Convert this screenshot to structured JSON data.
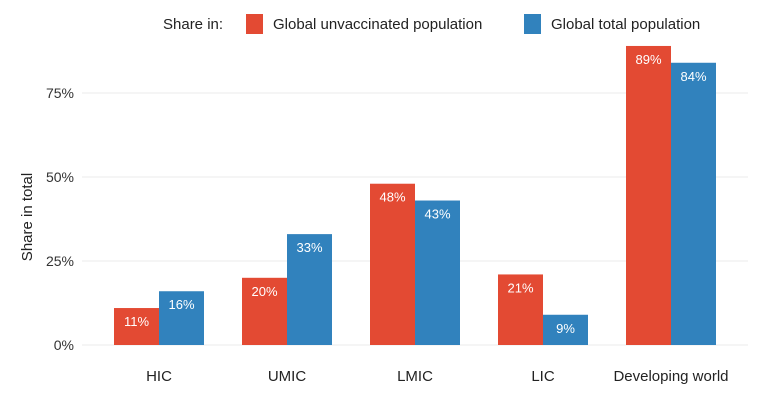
{
  "chart_data": {
    "type": "bar",
    "title": "",
    "xlabel": "",
    "ylabel": "Share in total",
    "ylim": [
      0,
      0.9
    ],
    "yticks": [
      0,
      0.25,
      0.5,
      0.75
    ],
    "ytick_labels": [
      "0%",
      "25%",
      "50%",
      "75%"
    ],
    "grid": true,
    "legend": {
      "title": "Share in:",
      "placement": "top-right",
      "entries": [
        "Global unvaccinated population",
        "Global total population"
      ]
    },
    "categories": [
      "HIC",
      "UMIC",
      "LMIC",
      "LIC",
      "Developing world"
    ],
    "series": [
      {
        "name": "Global unvaccinated population",
        "color": "#e34a33",
        "values": [
          0.11,
          0.2,
          0.48,
          0.21,
          0.89
        ],
        "labels": [
          "11%",
          "20%",
          "48%",
          "21%",
          "89%"
        ]
      },
      {
        "name": "Global total population",
        "color": "#3182bd",
        "values": [
          0.16,
          0.33,
          0.43,
          0.09,
          0.84
        ],
        "labels": [
          "16%",
          "33%",
          "43%",
          "9%",
          "84%"
        ]
      }
    ]
  }
}
